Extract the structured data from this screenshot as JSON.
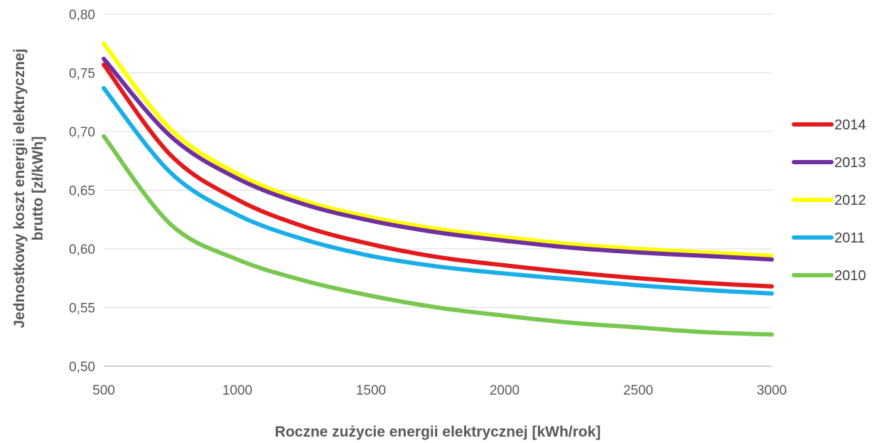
{
  "chart_data": {
    "type": "line",
    "title": "",
    "xlabel": "Roczne zużycie energii elektrycznej [kWh/rok]",
    "ylabel_lines": [
      "Jednostkowy koszt energii elektrycznej",
      "brutto [zł/kWh]"
    ],
    "xlim": [
      500,
      3000
    ],
    "ylim": [
      0.5,
      0.8
    ],
    "x_ticks": [
      500,
      1000,
      1500,
      2000,
      2500,
      3000
    ],
    "x_tick_labels": [
      "500",
      "1000",
      "1500",
      "2000",
      "2500",
      "3000"
    ],
    "y_ticks": [
      0.5,
      0.55,
      0.6,
      0.65,
      0.7,
      0.75,
      0.8
    ],
    "y_tick_labels": [
      "0,50",
      "0,55",
      "0,60",
      "0,65",
      "0,70",
      "0,75",
      "0,80"
    ],
    "grid": "horizontal",
    "legend_position": "right",
    "x": [
      500,
      750,
      1000,
      1250,
      1500,
      1750,
      2000,
      2250,
      2500,
      2750,
      3000
    ],
    "series": [
      {
        "name": "2014",
        "color": "#e31a1c",
        "values": [
          0.757,
          0.68,
          0.642,
          0.619,
          0.604,
          0.593,
          0.586,
          0.58,
          0.575,
          0.571,
          0.568
        ]
      },
      {
        "name": "2013",
        "color": "#7030a0",
        "values": [
          0.762,
          0.696,
          0.66,
          0.638,
          0.624,
          0.614,
          0.607,
          0.601,
          0.597,
          0.594,
          0.591
        ]
      },
      {
        "name": "2012",
        "color": "#ffff00",
        "values": [
          0.775,
          0.702,
          0.664,
          0.641,
          0.627,
          0.617,
          0.61,
          0.604,
          0.6,
          0.597,
          0.594
        ]
      },
      {
        "name": "2011",
        "color": "#1aaee8",
        "values": [
          0.737,
          0.665,
          0.629,
          0.608,
          0.594,
          0.585,
          0.579,
          0.574,
          0.569,
          0.565,
          0.562
        ]
      },
      {
        "name": "2010",
        "color": "#78c850",
        "values": [
          0.696,
          0.621,
          0.591,
          0.573,
          0.56,
          0.55,
          0.543,
          0.537,
          0.533,
          0.529,
          0.527
        ]
      }
    ]
  }
}
